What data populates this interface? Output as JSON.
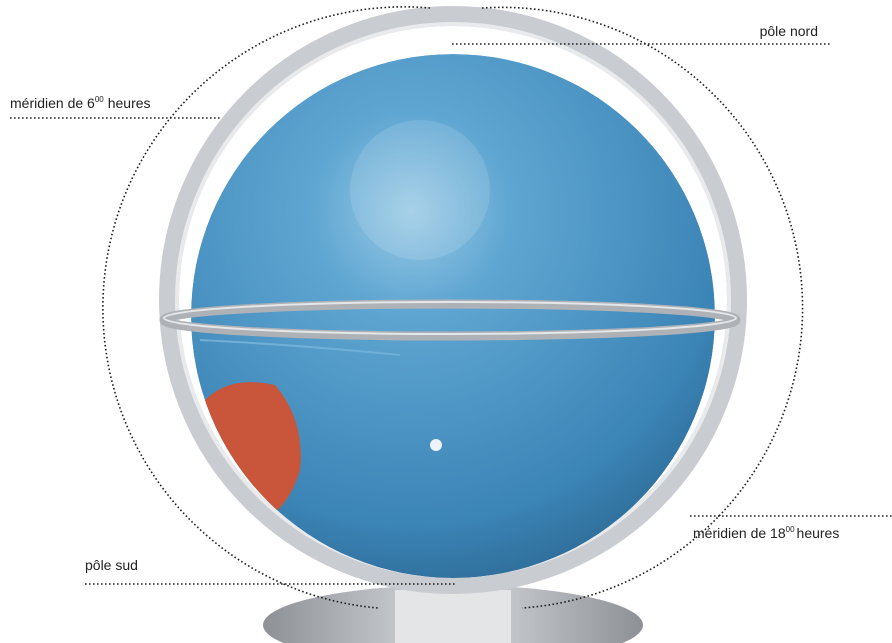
{
  "labels": {
    "north_pole": "pôle nord",
    "meridian_6": {
      "text": "méridien de 6",
      "superscript": "00",
      "suffix": "heures"
    },
    "meridian_18": {
      "text": "méridien de 18",
      "superscript": "00",
      "suffix": "heures"
    },
    "south_pole": "pôle sud"
  }
}
